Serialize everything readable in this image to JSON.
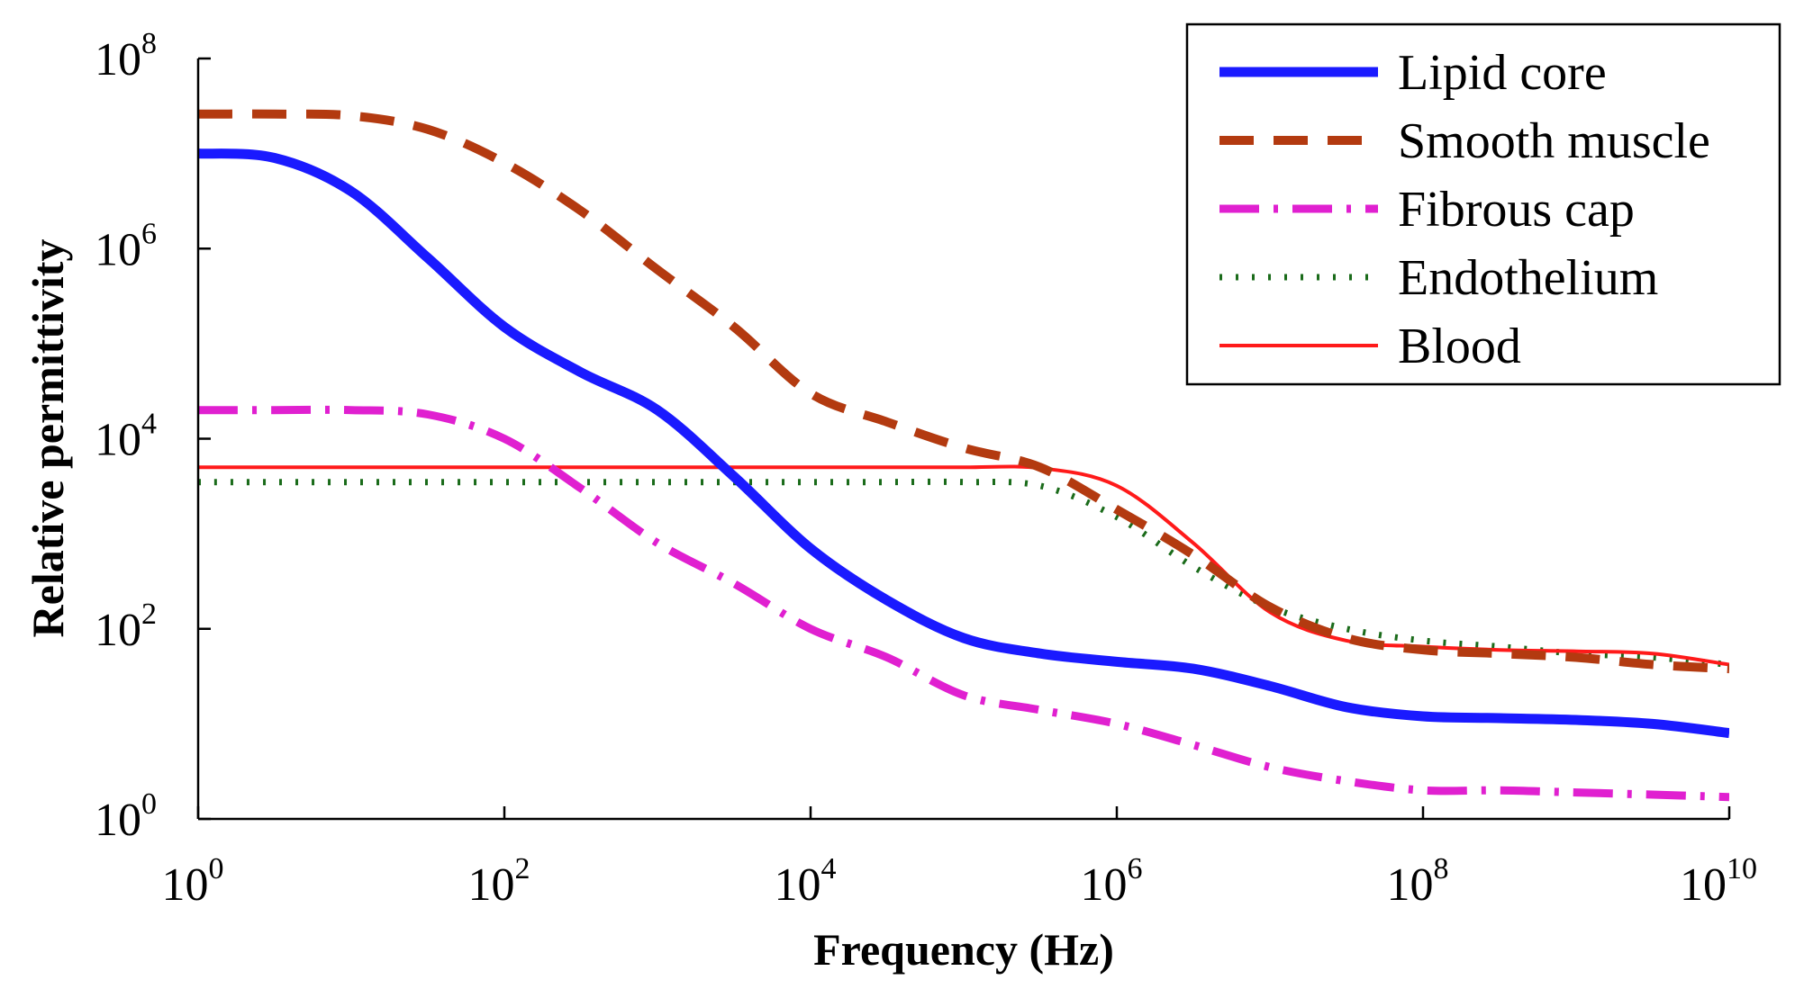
{
  "chart_data": {
    "type": "line",
    "title": "",
    "xlabel": "Frequency (Hz)",
    "ylabel": "Relative permittivity",
    "xscale": "log",
    "yscale": "log",
    "xlim": [
      1,
      10000000000
    ],
    "ylim": [
      1,
      100000000
    ],
    "x_ticks": [
      {
        "base": "10",
        "exp": "0",
        "value": 1
      },
      {
        "base": "10",
        "exp": "2",
        "value": 100
      },
      {
        "base": "10",
        "exp": "4",
        "value": 10000
      },
      {
        "base": "10",
        "exp": "6",
        "value": 1000000
      },
      {
        "base": "10",
        "exp": "8",
        "value": 100000000
      },
      {
        "base": "10",
        "exp": "10",
        "value": 10000000000
      }
    ],
    "y_ticks": [
      {
        "base": "10",
        "exp": "0",
        "value": 1
      },
      {
        "base": "10",
        "exp": "2",
        "value": 100
      },
      {
        "base": "10",
        "exp": "4",
        "value": 10000
      },
      {
        "base": "10",
        "exp": "6",
        "value": 1000000
      },
      {
        "base": "10",
        "exp": "8",
        "value": 100000000
      }
    ],
    "grid": false,
    "legend_position": "top-right",
    "series": [
      {
        "name": "Lipid core",
        "color": "#1a1aff",
        "style": "solid-thick",
        "x": [
          1,
          3.16,
          10,
          31.6,
          100,
          316,
          1000,
          3160,
          10000,
          31600,
          100000,
          316000,
          1000000,
          3160000,
          10000000,
          31600000,
          100000000,
          316000000,
          1000000000,
          3160000000,
          10000000000
        ],
        "values": [
          10000000,
          9000000,
          4000000,
          800000,
          150000,
          50000,
          20000,
          4000,
          700,
          200,
          80,
          55,
          45,
          38,
          25,
          15,
          12,
          11.5,
          11,
          10,
          8
        ]
      },
      {
        "name": "Smooth muscle",
        "color": "#b33a10",
        "style": "dashed",
        "x": [
          1,
          3.16,
          10,
          31.6,
          100,
          316,
          1000,
          3160,
          10000,
          31600,
          100000,
          316000,
          1000000,
          3160000,
          10000000,
          31600000,
          100000000,
          316000000,
          1000000000,
          3160000000,
          10000000000
        ],
        "values": [
          26000000,
          26000000,
          25000000,
          18000000,
          8000000,
          2500000,
          600000,
          150000,
          30000,
          15000,
          8000,
          5000,
          1800,
          600,
          170,
          80,
          60,
          55,
          50,
          42,
          38
        ]
      },
      {
        "name": "Fibrous cap",
        "color": "#e020d0",
        "style": "dash-dot",
        "x": [
          1,
          3.16,
          10,
          31.6,
          100,
          316,
          1000,
          3160,
          10000,
          31600,
          100000,
          316000,
          1000000,
          3160000,
          10000000,
          31600000,
          100000000,
          316000000,
          1000000000,
          3160000000,
          10000000000
        ],
        "values": [
          20000,
          20000,
          20000,
          18000,
          10000,
          3000,
          800,
          300,
          100,
          50,
          20,
          14,
          10,
          6,
          3.5,
          2.5,
          2,
          2,
          1.9,
          1.8,
          1.7
        ]
      },
      {
        "name": "Endothelium",
        "color": "#1a6b1a",
        "style": "dotted",
        "x": [
          1,
          3.16,
          10,
          31.6,
          100,
          316,
          1000,
          3160,
          10000,
          31600,
          100000,
          316000,
          1000000,
          3160000,
          10000000,
          31600000,
          100000000,
          316000000,
          1000000000,
          3160000000,
          10000000000
        ],
        "values": [
          3500,
          3500,
          3500,
          3500,
          3500,
          3500,
          3500,
          3500,
          3500,
          3500,
          3500,
          3200,
          1500,
          450,
          170,
          100,
          75,
          65,
          55,
          50,
          42
        ]
      },
      {
        "name": "Blood",
        "color": "#ff1a1a",
        "style": "solid-thin",
        "x": [
          1,
          3.16,
          10,
          31.6,
          100,
          316,
          1000,
          3160,
          10000,
          31600,
          100000,
          316000,
          1000000,
          3160000,
          10000000,
          31600000,
          100000000,
          316000000,
          1000000000,
          3160000000,
          10000000000
        ],
        "values": [
          5000,
          5000,
          5000,
          5000,
          5000,
          5000,
          5000,
          5000,
          5000,
          5000,
          5000,
          4900,
          3200,
          800,
          150,
          75,
          65,
          60,
          58,
          55,
          42
        ]
      }
    ]
  }
}
